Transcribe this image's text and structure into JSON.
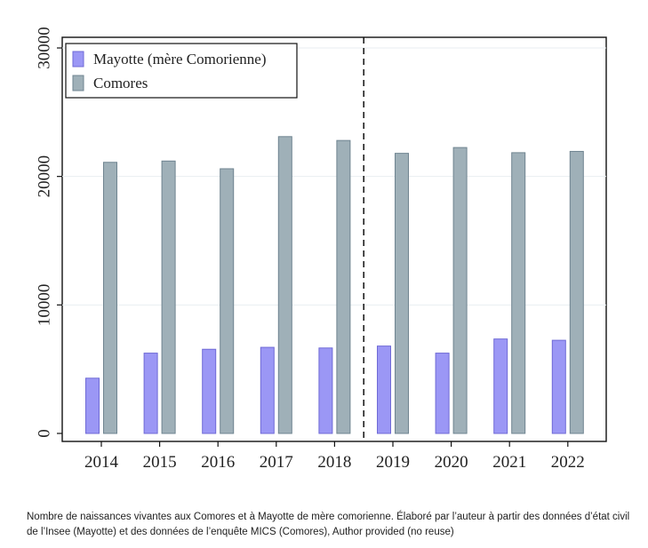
{
  "chart_data": {
    "type": "bar",
    "categories": [
      "2014",
      "2015",
      "2016",
      "2017",
      "2018",
      "2019",
      "2020",
      "2021",
      "2022"
    ],
    "series": [
      {
        "name": "Mayotte (mère Comorienne)",
        "color": "#9b97f5",
        "stroke": "#6f6ad6",
        "values": [
          4300,
          6250,
          6550,
          6700,
          6650,
          6800,
          6250,
          7350,
          7250
        ]
      },
      {
        "name": "Comores",
        "color": "#9fb0b8",
        "stroke": "#6f8490",
        "values": [
          21100,
          21200,
          20600,
          23100,
          22800,
          21800,
          22250,
          21850,
          21950
        ]
      }
    ],
    "y_ticks": [
      "0",
      "10000",
      "20000",
      "30000"
    ],
    "ylim": [
      0,
      30000
    ],
    "grid": "horizontal",
    "legend_position": "top-left",
    "divider_between": [
      "2018",
      "2019"
    ],
    "title": "",
    "xlabel": "",
    "ylabel": ""
  },
  "caption": "Nombre de naissances vivantes aux Comores et à Mayotte de mère comorienne. Élaboré par l’auteur à partir des données d’état civil de l’Insee (Mayotte) et des données de l’enquête MICS (Comores), Author provided (no reuse)"
}
